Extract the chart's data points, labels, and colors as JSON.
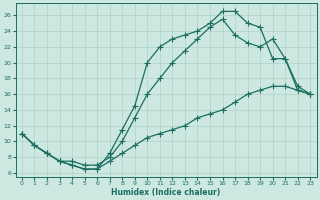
{
  "xlabel": "Humidex (Indice chaleur)",
  "xlim": [
    -0.5,
    23.5
  ],
  "ylim": [
    5.5,
    27.5
  ],
  "yticks": [
    6,
    8,
    10,
    12,
    14,
    16,
    18,
    20,
    22,
    24,
    26
  ],
  "xticks": [
    0,
    1,
    2,
    3,
    4,
    5,
    6,
    7,
    8,
    9,
    10,
    11,
    12,
    13,
    14,
    15,
    16,
    17,
    18,
    19,
    20,
    21,
    22,
    23
  ],
  "background_color": "#cde8e0",
  "grid_color": "#b0d0c8",
  "line_color": "#1a6e62",
  "series": [
    {
      "x": [
        0,
        1,
        2,
        3,
        4,
        5,
        6,
        7,
        8,
        9,
        10,
        11,
        12,
        13,
        14,
        15,
        16,
        17,
        18,
        19,
        20,
        21,
        22,
        23
      ],
      "y": [
        11,
        9.5,
        8.5,
        7.5,
        7.0,
        6.5,
        6.5,
        8.5,
        11.5,
        14.5,
        20.0,
        22.0,
        23.0,
        23.5,
        24.0,
        25.0,
        26.5,
        26.5,
        25.0,
        24.5,
        20.5,
        20.5,
        17.0,
        16.0
      ]
    },
    {
      "x": [
        0,
        1,
        2,
        3,
        4,
        5,
        6,
        7,
        8,
        9,
        10,
        11,
        12,
        13,
        14,
        15,
        16,
        17,
        18,
        19,
        20,
        21,
        22,
        23
      ],
      "y": [
        11,
        9.5,
        8.5,
        7.5,
        7.5,
        7.0,
        7.0,
        8.0,
        10.0,
        13.0,
        16.0,
        18.0,
        20.0,
        21.5,
        23.0,
        24.5,
        25.5,
        23.5,
        22.5,
        22.0,
        23.0,
        20.5,
        16.5,
        16.0
      ]
    },
    {
      "x": [
        0,
        1,
        2,
        3,
        4,
        5,
        6,
        7,
        8,
        9,
        10,
        11,
        12,
        13,
        14,
        15,
        16,
        17,
        18,
        19,
        20,
        21,
        22,
        23
      ],
      "y": [
        11,
        9.5,
        8.5,
        7.5,
        7.0,
        6.5,
        6.5,
        7.5,
        8.5,
        9.5,
        10.5,
        11.0,
        11.5,
        12.0,
        13.0,
        13.5,
        14.0,
        15.0,
        16.0,
        16.5,
        17.0,
        17.0,
        16.5,
        16.0
      ]
    }
  ],
  "marker": "+",
  "markersize": 4,
  "linewidth": 0.9,
  "tick_fontsize": 4.5,
  "xlabel_fontsize": 5.5
}
